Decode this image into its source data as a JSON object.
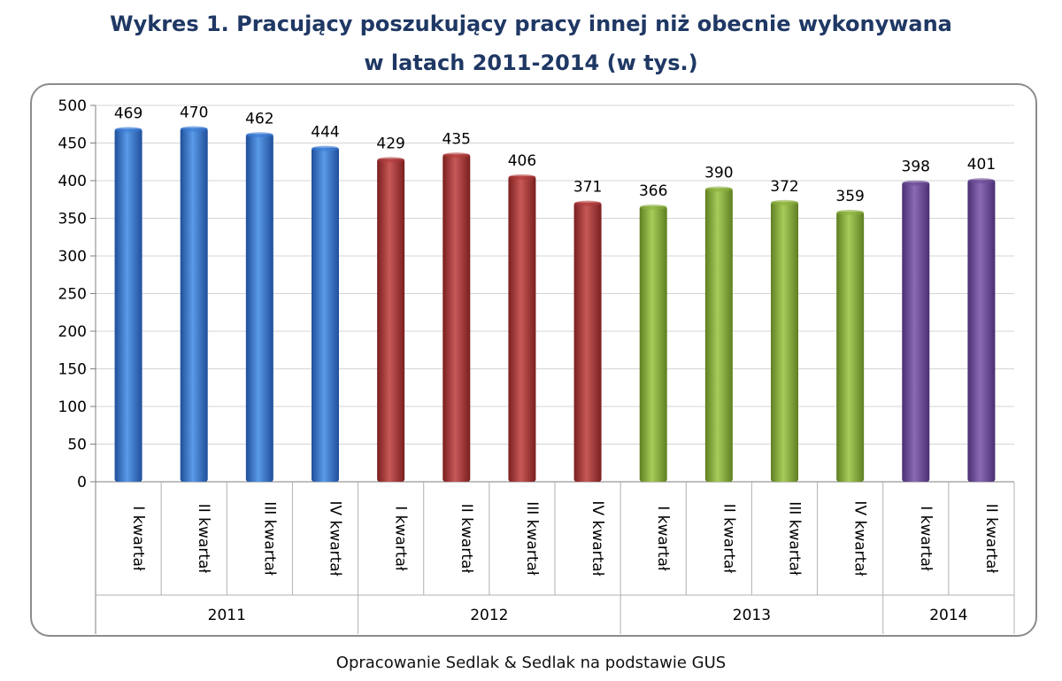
{
  "title_line1": "Wykres 1. Pracujący poszukujący pracy innej niż obecnie wykonywana",
  "title_line2": "w latach 2011-2014 (w tys.)",
  "source": "Opracowanie Sedlak & Sedlak na podstawie GUS",
  "chart_data": {
    "type": "bar",
    "categories": [
      "I kwartał",
      "II kwartał",
      "III kwartał",
      "IV kwartał",
      "I kwartał",
      "II kwartał",
      "III kwartał",
      "IV kwartał",
      "I kwartał",
      "II kwartał",
      "III kwartał",
      "IV kwartał",
      "I kwartał",
      "II kwartał"
    ],
    "values": [
      469,
      470,
      462,
      444,
      429,
      435,
      406,
      371,
      366,
      390,
      372,
      359,
      398,
      401
    ],
    "groups": [
      {
        "label": "2011",
        "count": 4,
        "color": "#3a7bd5"
      },
      {
        "label": "2012",
        "count": 4,
        "color": "#b03a3a"
      },
      {
        "label": "2013",
        "count": 4,
        "color": "#8cb040"
      },
      {
        "label": "2014",
        "count": 2,
        "color": "#6a4c93"
      }
    ],
    "yticks": [
      0,
      50,
      100,
      150,
      200,
      250,
      300,
      350,
      400,
      450,
      500
    ],
    "ylim": [
      0,
      500
    ],
    "grid": true,
    "legend": "none"
  }
}
